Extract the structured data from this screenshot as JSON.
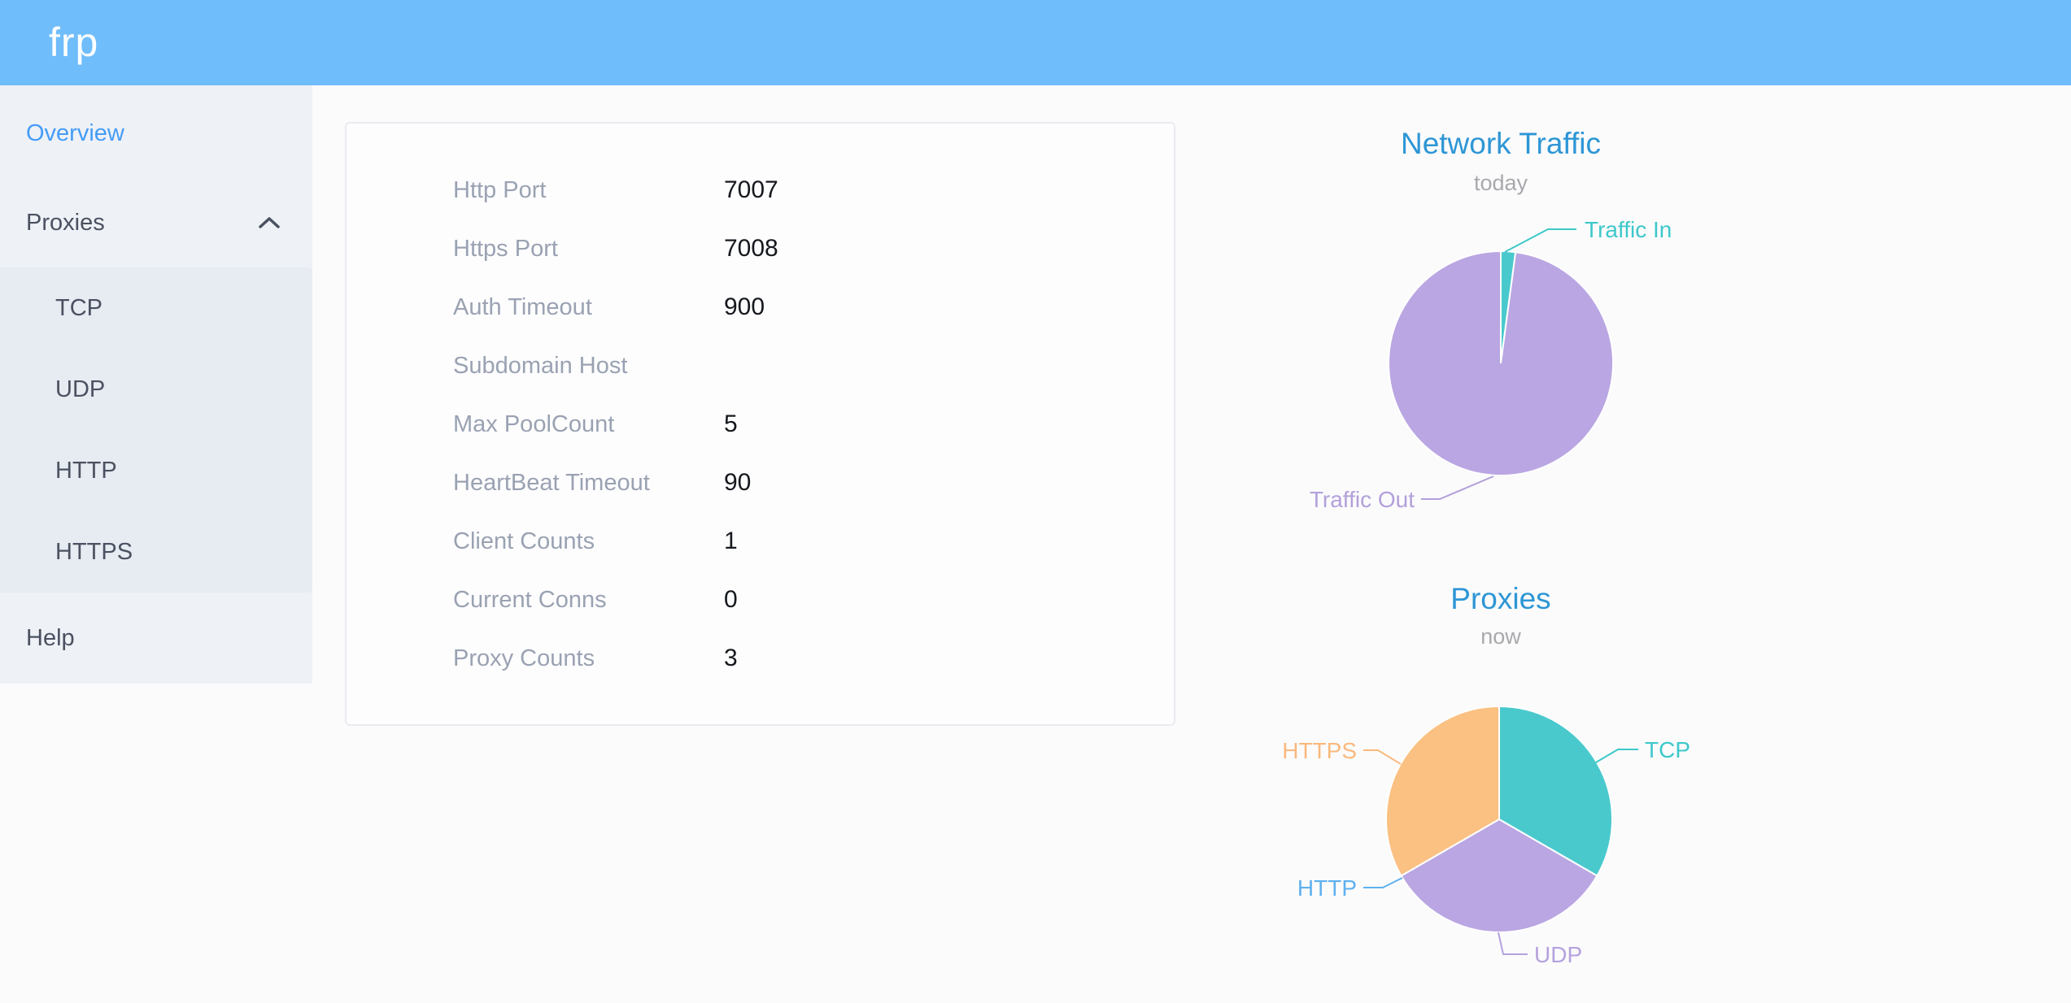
{
  "header": {
    "logo": "frp"
  },
  "colors": {
    "header_background": "#70bdfb",
    "sidebar_background": "#eef1f6",
    "submenu_background": "#e7ebf2",
    "active_item_blue": "#459cf7",
    "chart_title_blue": "#2e96d5",
    "teal": "#4ac9cd",
    "purple": "#b9a6e2",
    "orange": "#fac183",
    "blue": "#5fb1ef"
  },
  "sidebar": {
    "items": [
      {
        "label": "Overview",
        "active": true
      },
      {
        "label": "Proxies",
        "expanded": true,
        "children": [
          "TCP",
          "UDP",
          "HTTP",
          "HTTPS"
        ]
      },
      {
        "label": "Help"
      }
    ]
  },
  "server_info": {
    "rows": [
      {
        "label": "Http Port",
        "value": "7007"
      },
      {
        "label": "Https Port",
        "value": "7008"
      },
      {
        "label": "Auth Timeout",
        "value": "900"
      },
      {
        "label": "Subdomain Host",
        "value": ""
      },
      {
        "label": "Max PoolCount",
        "value": "5"
      },
      {
        "label": "HeartBeat Timeout",
        "value": "90"
      },
      {
        "label": "Client Counts",
        "value": "1"
      },
      {
        "label": "Current Conns",
        "value": "0"
      },
      {
        "label": "Proxy Counts",
        "value": "3"
      }
    ]
  },
  "chart_data": [
    {
      "type": "pie",
      "title": "Network Traffic",
      "subtitle": "today",
      "legend_position": "none",
      "layout": {
        "center": [
          300,
          207
        ],
        "radius": 138
      },
      "series": [
        {
          "name": "Traffic In",
          "value": 2.1,
          "color": "#4ac9cd",
          "label_line": [
            [
              305,
              70
            ],
            [
              358,
              42
            ],
            [
              393,
              42
            ]
          ],
          "label_xy": [
            403,
            42
          ],
          "label_align": "start",
          "label_color": "#3ec8ca"
        },
        {
          "name": "Traffic Out",
          "value": 97.9,
          "color": "#b9a6e2",
          "label_line": [
            [
              291,
              346
            ],
            [
              225,
              374
            ],
            [
              202,
              374
            ]
          ],
          "label_xy": [
            194,
            374
          ],
          "label_align": "end",
          "label_color": "#b3a0da"
        }
      ]
    },
    {
      "type": "pie",
      "title": "Proxies",
      "subtitle": "now",
      "legend_position": "none",
      "layout": {
        "center": [
          298,
          158
        ],
        "radius": 139
      },
      "series": [
        {
          "name": "TCP",
          "value": 1,
          "color": "#4ac9cd",
          "label_line": [
            [
              417,
              88
            ],
            [
              444,
              72
            ],
            [
              469,
              72
            ]
          ],
          "label_xy": [
            477,
            72
          ],
          "label_align": "start",
          "label_color": "#3ec8ca"
        },
        {
          "name": "UDP",
          "value": 1,
          "color": "#b9a6e2",
          "label_line": [
            [
              297,
              297
            ],
            [
              303,
              324
            ],
            [
              333,
              324
            ]
          ],
          "label_xy": [
            341,
            324
          ],
          "label_align": "start",
          "label_color": "#b5a2dd"
        },
        {
          "name": "HTTP",
          "value": 0,
          "color": "#5fb1ef",
          "label_line": [
            [
              179,
              230
            ],
            [
              155,
              242
            ],
            [
              131,
              242
            ]
          ],
          "label_xy": [
            123,
            242
          ],
          "label_align": "end",
          "label_color": "#5fb1ef"
        },
        {
          "name": "HTTPS",
          "value": 1,
          "color": "#fac183",
          "label_line": [
            [
              177,
              90
            ],
            [
              149,
              73
            ],
            [
              131,
              73
            ]
          ],
          "label_xy": [
            123,
            73
          ],
          "label_align": "end",
          "label_color": "#f9b97e"
        }
      ]
    }
  ]
}
